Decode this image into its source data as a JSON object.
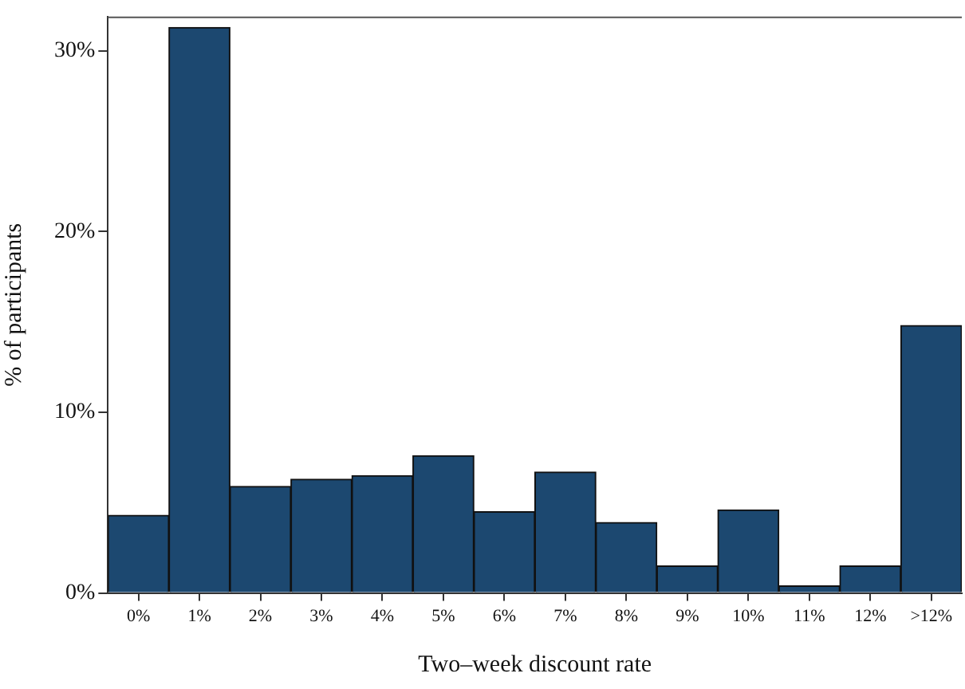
{
  "chart_data": {
    "type": "bar",
    "xlabel": "Two–week discount rate",
    "ylabel": "% of participants",
    "categories": [
      "0%",
      "1%",
      "2%",
      "3%",
      "4%",
      "5%",
      "6%",
      "7%",
      "8%",
      "9%",
      "10%",
      "11%",
      "12%",
      ">12%"
    ],
    "values": [
      4.3,
      31.3,
      5.9,
      6.3,
      6.5,
      7.6,
      4.5,
      6.7,
      3.9,
      1.5,
      4.6,
      0.4,
      1.5,
      14.8
    ],
    "color": "#1c4870",
    "ylim": [
      0,
      31.9
    ],
    "yticks": [
      {
        "value": 0,
        "label": "0%"
      },
      {
        "value": 10,
        "label": "10%"
      },
      {
        "value": 20,
        "label": "20%"
      },
      {
        "value": 30,
        "label": "30%"
      }
    ],
    "grid": false,
    "legend": false
  }
}
